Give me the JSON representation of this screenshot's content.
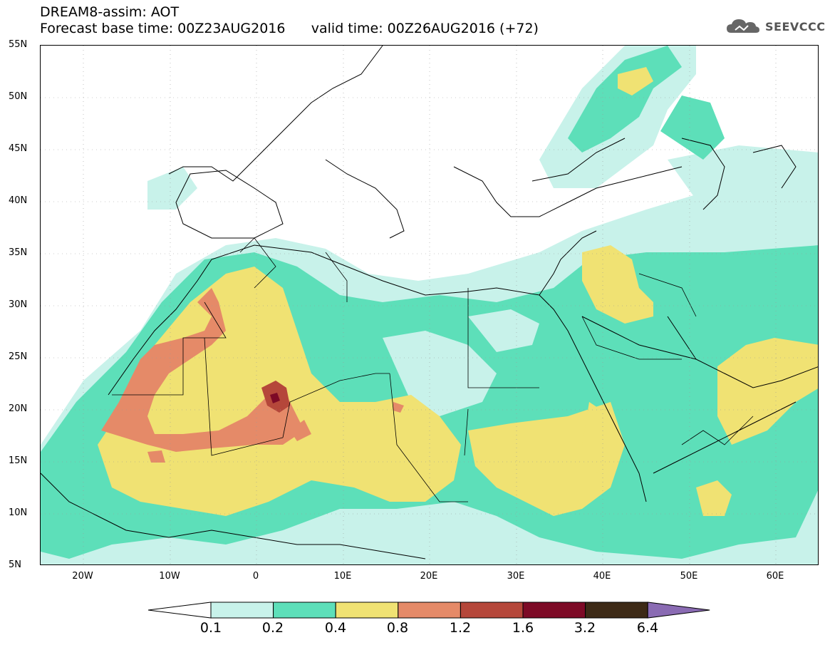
{
  "header": {
    "title": "DREAM8-assim: AOT",
    "base_time_text": "Forecast base time: 00Z23AUG2016",
    "valid_time_text": "valid time: 00Z26AUG2016 (+72)"
  },
  "logo": {
    "text": "SEEVCCC",
    "icon": "cloud-icon"
  },
  "axes": {
    "lat_labels": [
      "55N",
      "50N",
      "45N",
      "40N",
      "35N",
      "30N",
      "25N",
      "20N",
      "15N",
      "10N",
      "5N"
    ],
    "lon_labels": [
      "20W",
      "10W",
      "0",
      "10E",
      "20E",
      "30E",
      "40E",
      "50E",
      "60E"
    ],
    "lat_range": [
      5,
      55
    ],
    "lon_range": [
      -25,
      65
    ]
  },
  "legend": {
    "levels": [
      "0.1",
      "0.2",
      "0.4",
      "0.8",
      "1.2",
      "1.6",
      "3.2",
      "6.4"
    ],
    "colors": [
      "#c8f2ea",
      "#5ddfb9",
      "#f0e273",
      "#e58a68",
      "#b5473a",
      "#7d0a26",
      "#3d2a16",
      "#8a6bb3"
    ]
  }
}
